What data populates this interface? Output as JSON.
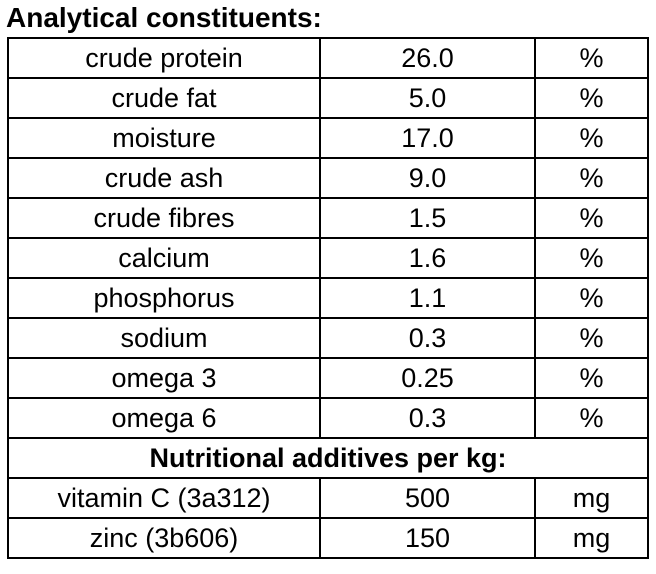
{
  "title": "Analytical constituents:",
  "colors": {
    "border": "#000000",
    "text": "#000000",
    "background": "#ffffff"
  },
  "rows": [
    {
      "type": "data",
      "name": "crude protein",
      "value": "26.0",
      "unit": "%"
    },
    {
      "type": "data",
      "name": "crude fat",
      "value": "5.0",
      "unit": "%"
    },
    {
      "type": "data",
      "name": "moisture",
      "value": "17.0",
      "unit": "%"
    },
    {
      "type": "data",
      "name": "crude ash",
      "value": "9.0",
      "unit": "%"
    },
    {
      "type": "data",
      "name": "crude fibres",
      "value": "1.5",
      "unit": "%"
    },
    {
      "type": "data",
      "name": "calcium",
      "value": "1.6",
      "unit": "%"
    },
    {
      "type": "data",
      "name": "phosphorus",
      "value": "1.1",
      "unit": "%"
    },
    {
      "type": "data",
      "name": "sodium",
      "value": "0.3",
      "unit": "%"
    },
    {
      "type": "data",
      "name": "omega 3",
      "value": "0.25",
      "unit": "%"
    },
    {
      "type": "data",
      "name": "omega 6",
      "value": "0.3",
      "unit": "%"
    },
    {
      "type": "section",
      "label": "Nutritional additives per kg:"
    },
    {
      "type": "data",
      "name": "vitamin C (3a312)",
      "value": "500",
      "unit": "mg"
    },
    {
      "type": "data",
      "name": "zinc (3b606)",
      "value": "150",
      "unit": "mg"
    }
  ]
}
